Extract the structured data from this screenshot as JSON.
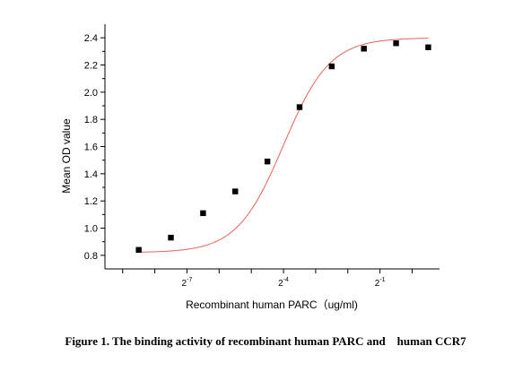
{
  "caption": "Figure 1. The binding activity of recombinant human PARC and    human CCR7",
  "chart_data": {
    "type": "scatter",
    "xlabel": "Recombinant human PARC（ug/ml)",
    "ylabel": "Mean OD value",
    "x_scale": "log2",
    "xlim_log2": [
      -9.55,
      0.85
    ],
    "ylim": [
      0.7,
      2.5
    ],
    "y_ticks": [
      0.8,
      1.0,
      1.2,
      1.4,
      1.6,
      1.8,
      2.0,
      2.2,
      2.4
    ],
    "y_tick_labels": [
      "0.8",
      "1.0",
      "1.2",
      "1.4",
      "1.6",
      "1.8",
      "2.0",
      "2.2",
      "2.4"
    ],
    "x_major_ticks_log2": [
      -7,
      -4,
      -1
    ],
    "x_tick_labels": [
      {
        "log2": -7,
        "base": "2",
        "exp": "-7"
      },
      {
        "log2": -4,
        "base": "2",
        "exp": "-4"
      },
      {
        "log2": -1,
        "base": "2",
        "exp": "-1"
      }
    ],
    "marker_color": "#000000",
    "fit_color": "#e8625a",
    "grid": false,
    "points": [
      {
        "x_log2": -8.5,
        "y": 0.84
      },
      {
        "x_log2": -7.5,
        "y": 0.93
      },
      {
        "x_log2": -6.5,
        "y": 1.11
      },
      {
        "x_log2": -5.5,
        "y": 1.27
      },
      {
        "x_log2": -4.5,
        "y": 1.49
      },
      {
        "x_log2": -3.5,
        "y": 1.89
      },
      {
        "x_log2": -2.5,
        "y": 2.19
      },
      {
        "x_log2": -1.5,
        "y": 2.32
      },
      {
        "x_log2": -0.5,
        "y": 2.36
      },
      {
        "x_log2": 0.5,
        "y": 2.33
      }
    ],
    "fit": {
      "model": "4PL",
      "bottom": 0.82,
      "top": 2.4,
      "ec50_log2": -4.0,
      "slope": 0.72,
      "x_range_log2": [
        -8.5,
        0.5
      ]
    }
  }
}
